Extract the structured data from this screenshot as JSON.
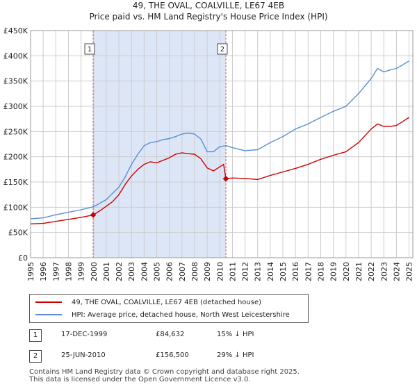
{
  "title_line1": "49, THE OVAL, COALVILLE, LE67 4EB",
  "title_line2": "Price paid vs. HM Land Registry's House Price Index (HPI)",
  "legend": {
    "series1": "49, THE OVAL, COALVILLE, LE67 4EB (detached house)",
    "series2": "HPI: Average price, detached house, North West Leicestershire"
  },
  "transactions": [
    {
      "num": "1",
      "date": "17-DEC-1999",
      "price": "£84,632",
      "hpi": "15% ↓ HPI"
    },
    {
      "num": "2",
      "date": "25-JUN-2010",
      "price": "£156,500",
      "hpi": "29% ↓ HPI"
    }
  ],
  "footer": {
    "line1": "Contains HM Land Registry data © Crown copyright and database right 2025.",
    "line2": "This data is licensed under the Open Government Licence v3.0."
  },
  "colors": {
    "property": "#cc0000",
    "hpi": "#5b8fd1",
    "shade": "#dde6f7",
    "grid": "#cccccc"
  },
  "chart_data": {
    "type": "line",
    "title": "49, THE OVAL, COALVILLE, LE67 4EB",
    "subtitle": "Price paid vs. HM Land Registry's House Price Index (HPI)",
    "xlabel": "",
    "ylabel": "",
    "xlim": [
      1995,
      2025.3
    ],
    "ylim": [
      0,
      450000
    ],
    "yticks": [
      0,
      50000,
      100000,
      150000,
      200000,
      250000,
      300000,
      350000,
      400000,
      450000
    ],
    "ytick_labels": [
      "£0",
      "£50K",
      "£100K",
      "£150K",
      "£200K",
      "£250K",
      "£300K",
      "£350K",
      "£400K",
      "£450K"
    ],
    "xticks": [
      1995,
      1996,
      1997,
      1998,
      1999,
      2000,
      2001,
      2002,
      2003,
      2004,
      2005,
      2006,
      2007,
      2008,
      2009,
      2010,
      2011,
      2012,
      2013,
      2014,
      2015,
      2016,
      2017,
      2018,
      2019,
      2020,
      2021,
      2022,
      2023,
      2024,
      2025
    ],
    "grid": true,
    "legend_position": "below",
    "shaded_region": [
      1999.96,
      2010.48
    ],
    "markers": [
      {
        "label": "1",
        "x": 1999.96,
        "y": 84632
      },
      {
        "label": "2",
        "x": 2010.48,
        "y": 156500
      }
    ],
    "series": [
      {
        "name": "49, THE OVAL, COALVILLE, LE67 4EB (detached house)",
        "x": [
          1995,
          1996,
          1997,
          1998,
          1999,
          1999.96,
          2000.5,
          2001,
          2001.5,
          2002,
          2002.5,
          2003,
          2003.5,
          2004,
          2004.5,
          2005,
          2005.5,
          2006,
          2006.5,
          2007,
          2007.5,
          2008,
          2008.5,
          2009,
          2009.5,
          2010,
          2010.3,
          2010.48,
          2011,
          2012,
          2013,
          2014,
          2015,
          2016,
          2017,
          2018,
          2019,
          2020,
          2021,
          2022,
          2022.5,
          2023,
          2023.5,
          2024,
          2024.5,
          2025
        ],
        "values": [
          67000,
          68000,
          72000,
          76000,
          80000,
          84632,
          93000,
          102000,
          111000,
          125000,
          145000,
          162000,
          175000,
          185000,
          190000,
          188000,
          193000,
          198000,
          205000,
          208000,
          206000,
          205000,
          196000,
          178000,
          172000,
          180000,
          185000,
          156500,
          158000,
          157000,
          155000,
          163000,
          170000,
          177000,
          185000,
          195000,
          203000,
          210000,
          228000,
          255000,
          265000,
          260000,
          260000,
          262000,
          270000,
          278000
        ]
      },
      {
        "name": "HPI: Average price, detached house, North West Leicestershire",
        "x": [
          1995,
          1996,
          1997,
          1998,
          1999,
          2000,
          2001,
          2002,
          2002.5,
          2003,
          2003.5,
          2004,
          2004.5,
          2005,
          2005.5,
          2006,
          2006.5,
          2007,
          2007.5,
          2008,
          2008.5,
          2009,
          2009.5,
          2010,
          2010.5,
          2011,
          2012,
          2013,
          2014,
          2015,
          2016,
          2017,
          2018,
          2019,
          2020,
          2021,
          2022,
          2022.5,
          2023,
          2023.5,
          2024,
          2024.5,
          2025
        ],
        "values": [
          77000,
          79000,
          85000,
          90000,
          95000,
          101000,
          115000,
          140000,
          160000,
          185000,
          205000,
          222000,
          228000,
          230000,
          234000,
          236000,
          240000,
          245000,
          247000,
          245000,
          235000,
          210000,
          210000,
          220000,
          222000,
          218000,
          212000,
          214000,
          228000,
          240000,
          255000,
          265000,
          278000,
          290000,
          300000,
          325000,
          355000,
          375000,
          368000,
          372000,
          375000,
          382000,
          390000
        ]
      }
    ]
  }
}
